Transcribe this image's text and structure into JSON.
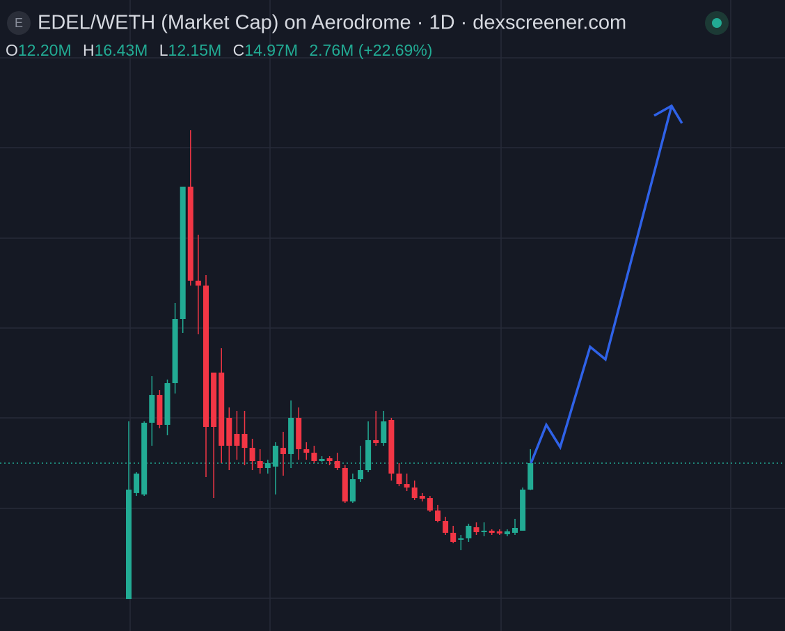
{
  "header": {
    "icon": "E",
    "title": "EDEL/WETH (Market Cap) on Aerodrome · 1D · dexscreener.com",
    "ohlc": [
      {
        "label": "O",
        "value": "12.20M"
      },
      {
        "label": "H",
        "value": "16.43M"
      },
      {
        "label": "L",
        "value": "12.15M"
      },
      {
        "label": "C",
        "value": "14.97M"
      }
    ],
    "change": "2.76M (+22.69%)"
  },
  "chart_data": {
    "type": "candlestick",
    "open": [
      0.75,
      11.84,
      11.69,
      19.2,
      22.11,
      18.98,
      23.35,
      30.06,
      43.91,
      34.07,
      33.56,
      24.45,
      24.45,
      19.71,
      18.03,
      18.03,
      16.57,
      15.19,
      14.46,
      14.61,
      16.57,
      15.92,
      19.71,
      16.43,
      16.06,
      15.19,
      15.48,
      15.19,
      14.46,
      10.96,
      13.29,
      14.24,
      17.38,
      17.08,
      19.49,
      13.88,
      12.78,
      12.42,
      11.54,
      11.32,
      10.01,
      8.92,
      7.68,
      6.95,
      7.1,
      8.26,
      7.75,
      7.9,
      7.83,
      7.53,
      7.68,
      7.9,
      12.2
    ],
    "high": [
      19.34,
      14.02,
      19.34,
      24.08,
      22.62,
      23.72,
      31.74,
      43.91,
      49.82,
      38.88,
      34.65,
      24.45,
      27.0,
      20.8,
      20.44,
      20.44,
      17.52,
      16.43,
      15.33,
      17.16,
      18.25,
      21.53,
      20.8,
      17.16,
      16.79,
      15.7,
      15.7,
      16.06,
      14.75,
      13.88,
      16.79,
      19.34,
      20.44,
      20.44,
      19.71,
      14.97,
      13.88,
      13.15,
      11.84,
      11.54,
      10.6,
      9.36,
      8.41,
      7.46,
      8.63,
      8.77,
      8.77,
      8.04,
      8.04,
      8.04,
      9.14,
      12.42,
      16.43
    ],
    "low": [
      0.75,
      11.54,
      11.54,
      16.79,
      18.62,
      17.89,
      22.26,
      28.6,
      33.56,
      28.46,
      13.51,
      11.32,
      14.97,
      14.24,
      15.33,
      14.75,
      14.24,
      13.88,
      13.88,
      11.69,
      13.66,
      14.46,
      15.33,
      15.33,
      14.97,
      15.12,
      14.75,
      14.24,
      10.81,
      10.81,
      13.0,
      14.02,
      16.79,
      16.79,
      13.15,
      12.56,
      12.05,
      11.11,
      10.96,
      9.87,
      8.77,
      7.46,
      6.59,
      5.86,
      6.73,
      7.46,
      7.32,
      7.46,
      7.46,
      7.32,
      7.46,
      7.9,
      12.15
    ],
    "close": [
      12.2,
      13.88,
      19.2,
      22.11,
      18.98,
      23.35,
      30.06,
      43.91,
      34.07,
      33.56,
      18.76,
      18.76,
      16.79,
      16.79,
      16.79,
      16.57,
      15.19,
      14.46,
      14.97,
      16.79,
      15.92,
      19.71,
      16.43,
      16.06,
      15.19,
      15.41,
      15.19,
      14.46,
      10.96,
      13.29,
      14.24,
      17.38,
      17.08,
      19.34,
      13.88,
      12.78,
      12.42,
      11.32,
      11.25,
      10.01,
      8.92,
      7.68,
      6.73,
      7.1,
      8.41,
      7.75,
      7.9,
      7.68,
      7.61,
      7.83,
      8.19,
      12.2,
      14.97
    ],
    "ylim": [
      -2.6,
      63.45
    ],
    "up_color": "#22ab94",
    "down_color": "#f23645",
    "last_price_line": true
  }
}
